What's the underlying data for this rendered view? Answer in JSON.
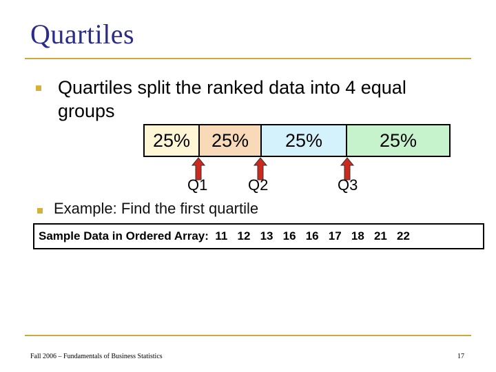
{
  "slide": {
    "title": "Quartiles",
    "bullets": [
      "Quartiles split the ranked data into 4 equal groups",
      "Example: Find the first quartile"
    ]
  },
  "bar": {
    "segments": [
      {
        "label": "25%",
        "color": "#fff6d6"
      },
      {
        "label": "25%",
        "color": "#f8d9b8"
      },
      {
        "label": "25%",
        "color": "#d4f2fb"
      },
      {
        "label": "25%",
        "color": "#c6f2cc"
      }
    ]
  },
  "quartiles": [
    "Q1",
    "Q2",
    "Q3"
  ],
  "arrow_color": "#cc2a1e",
  "sample": {
    "text": "Sample Data in Ordered Array:  11   12   13   16   16   17   18   21   22"
  },
  "footer": {
    "left": "Fall 2006 – Fundamentals of Business Statistics",
    "page": "17"
  }
}
